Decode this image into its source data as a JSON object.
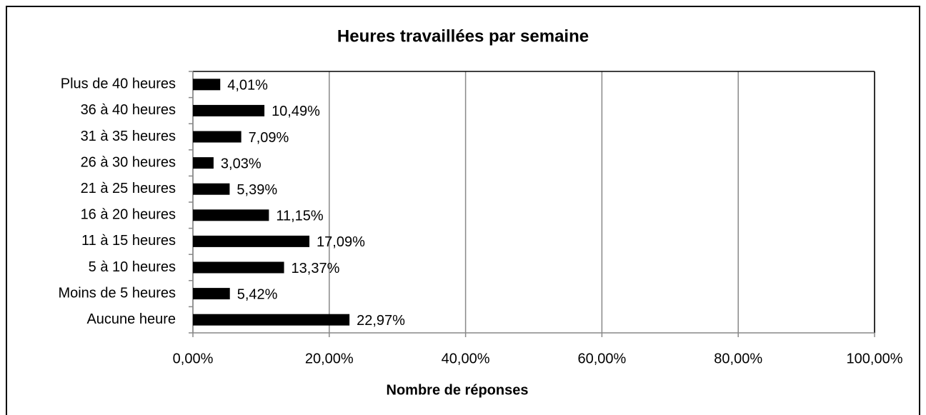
{
  "chart_data": {
    "type": "bar",
    "orientation": "horizontal",
    "title": "Heures travaillées par semaine",
    "x_label": "Nombre de réponses",
    "categories": [
      "Plus de 40 heures",
      "36 à 40 heures",
      "31 à 35 heures",
      "26 à 30 heures",
      "21 à 25 heures",
      "16 à 20 heures",
      "11 à 15 heures",
      "5 à 10 heures",
      "Moins de 5 heures",
      "Aucune heure"
    ],
    "values": [
      4.01,
      10.49,
      7.09,
      3.03,
      5.39,
      11.15,
      17.09,
      13.37,
      5.42,
      22.97
    ],
    "value_labels": [
      "4,01%",
      "10,49%",
      "7,09%",
      "3,03%",
      "5,39%",
      "11,15%",
      "17,09%",
      "13,37%",
      "5,42%",
      "22,97%"
    ],
    "color": "#000000",
    "xlim": [
      0,
      100
    ],
    "xticks": [
      {
        "value": 0,
        "label": "0,00%"
      },
      {
        "value": 20,
        "label": "20,00%"
      },
      {
        "value": 40,
        "label": "40,00%"
      },
      {
        "value": 60,
        "label": "60,00%"
      },
      {
        "value": 80,
        "label": "80,00%"
      },
      {
        "value": 100,
        "label": "100,00%"
      }
    ],
    "grid": true
  }
}
